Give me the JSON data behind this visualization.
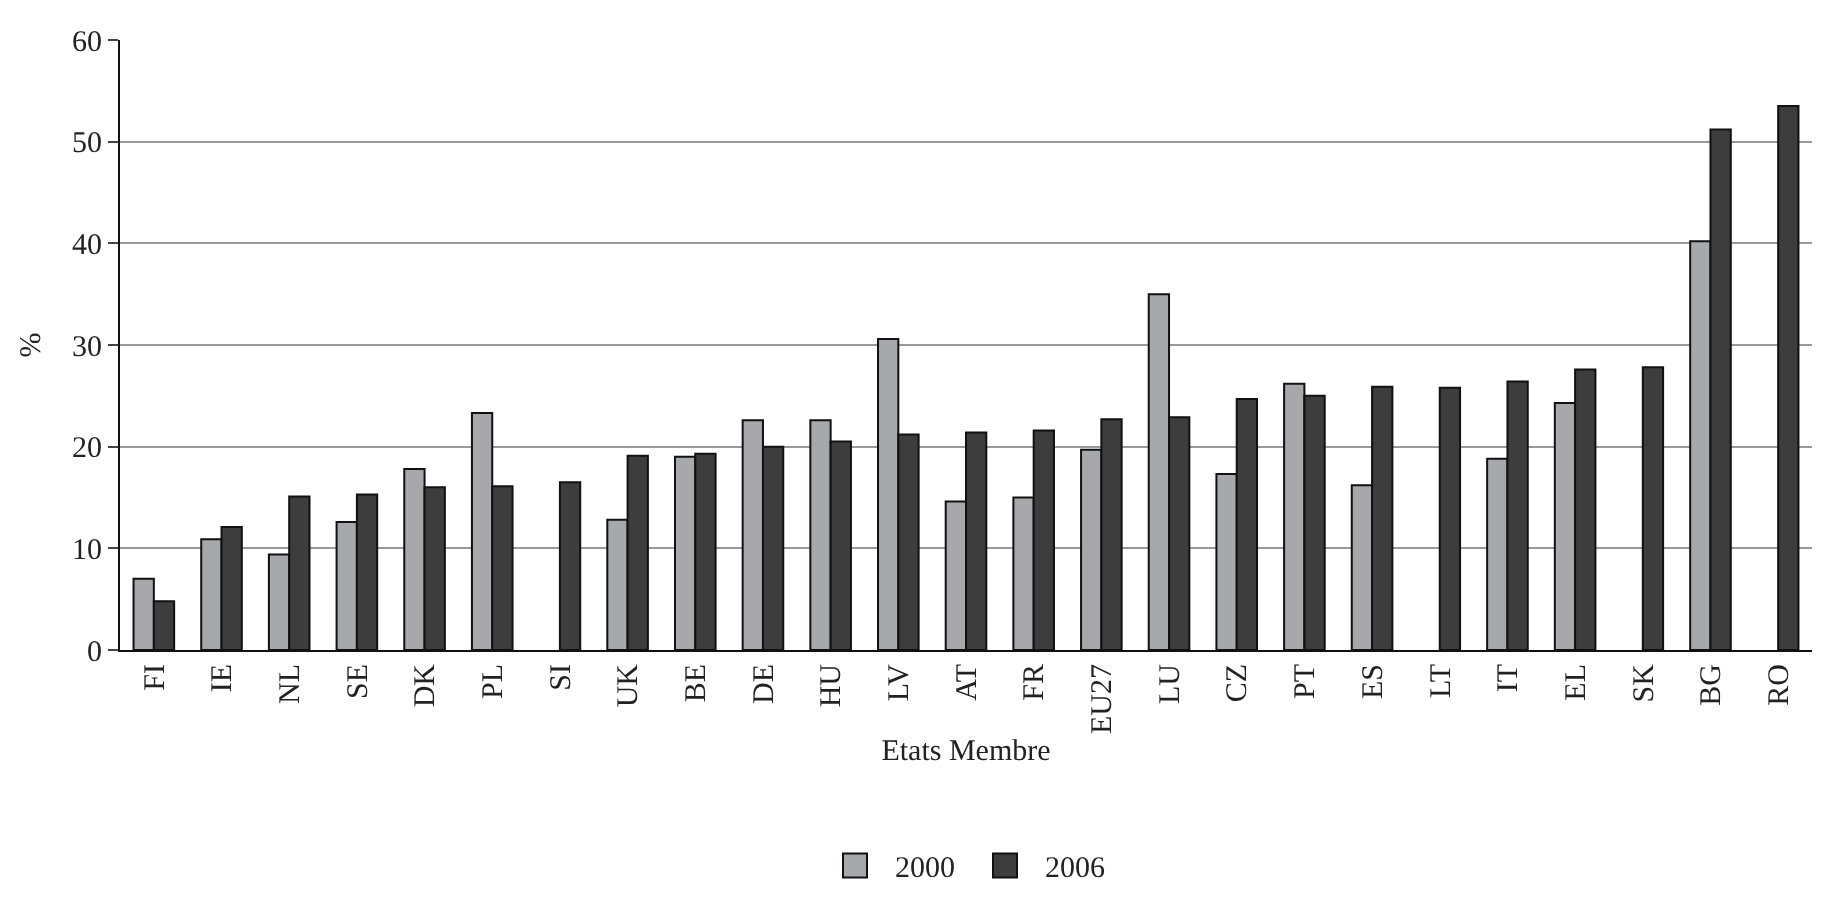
{
  "chart_data": {
    "type": "bar",
    "xlabel": "Etats Membre",
    "ylabel": "%",
    "categories": [
      "FI",
      "IE",
      "NL",
      "SE",
      "DK",
      "PL",
      "SI",
      "UK",
      "BE",
      "DE",
      "HU",
      "LV",
      "AT",
      "FR",
      "EU27",
      "LU",
      "CZ",
      "PT",
      "ES",
      "LT",
      "IT",
      "EL",
      "SK",
      "BG",
      "RO"
    ],
    "series": [
      {
        "name": "2000",
        "color": "#a7a8ab",
        "values": [
          7,
          10.9,
          9.4,
          12.6,
          17.8,
          23.3,
          null,
          12.8,
          19,
          22.6,
          22.6,
          30.6,
          14.6,
          15,
          19.7,
          35,
          17.3,
          26.2,
          16.2,
          null,
          18.8,
          24.3,
          null,
          40.2,
          null
        ]
      },
      {
        "name": "2006",
        "color": "#3d3d3d",
        "values": [
          4.8,
          12.1,
          15.1,
          15.3,
          16,
          16.1,
          16.5,
          19.1,
          19.3,
          20,
          20.5,
          21.2,
          21.4,
          21.6,
          22.7,
          22.9,
          24.7,
          25,
          25.9,
          25.8,
          26.4,
          27.6,
          27.8,
          51.2,
          53.5
        ]
      }
    ],
    "ylim": [
      0,
      60
    ],
    "yticks": [
      0,
      10,
      20,
      30,
      40,
      50,
      60
    ],
    "grid": "y",
    "legend": "bottom"
  }
}
